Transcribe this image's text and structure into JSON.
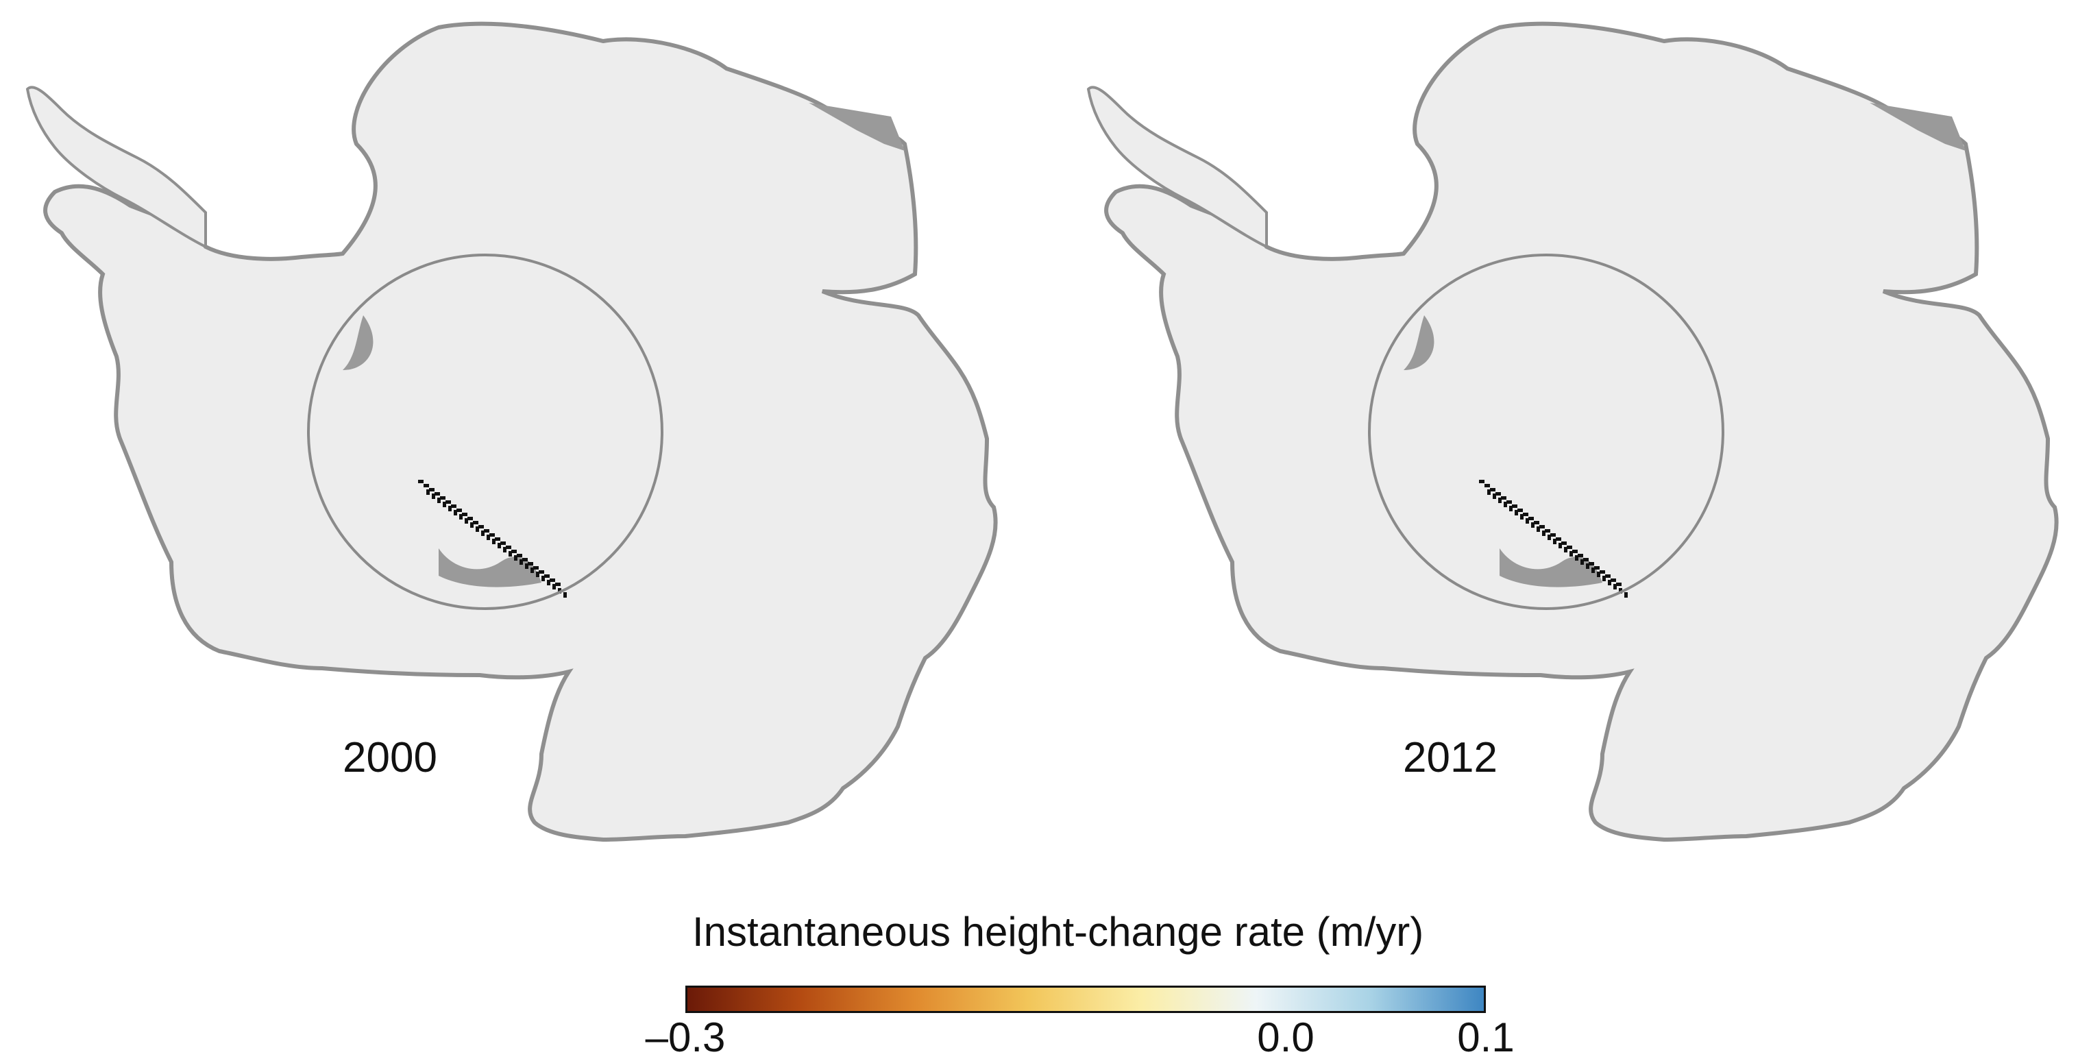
{
  "panels": [
    {
      "year": "2000"
    },
    {
      "year": "2012"
    }
  ],
  "colorbar": {
    "title": "Instantaneous height-change rate (m/yr)",
    "min": -0.3,
    "max": 0.1,
    "ticks": [
      {
        "value": -0.3,
        "label": "–0.3"
      },
      {
        "value": 0.0,
        "label": "0.0"
      },
      {
        "value": 0.1,
        "label": "0.1"
      }
    ],
    "stops": [
      "#6b1a08",
      "#b44b12",
      "#e08a2e",
      "#f2c65a",
      "#fbeea8",
      "#eef5f7",
      "#a9d3e6",
      "#3e86c2"
    ]
  },
  "colors": {
    "land": "#ededed",
    "land_edge": "#8f8f8f",
    "coast_gray": "#9a9a9a",
    "circle": "#8a8a8a",
    "rock": "#111111"
  }
}
